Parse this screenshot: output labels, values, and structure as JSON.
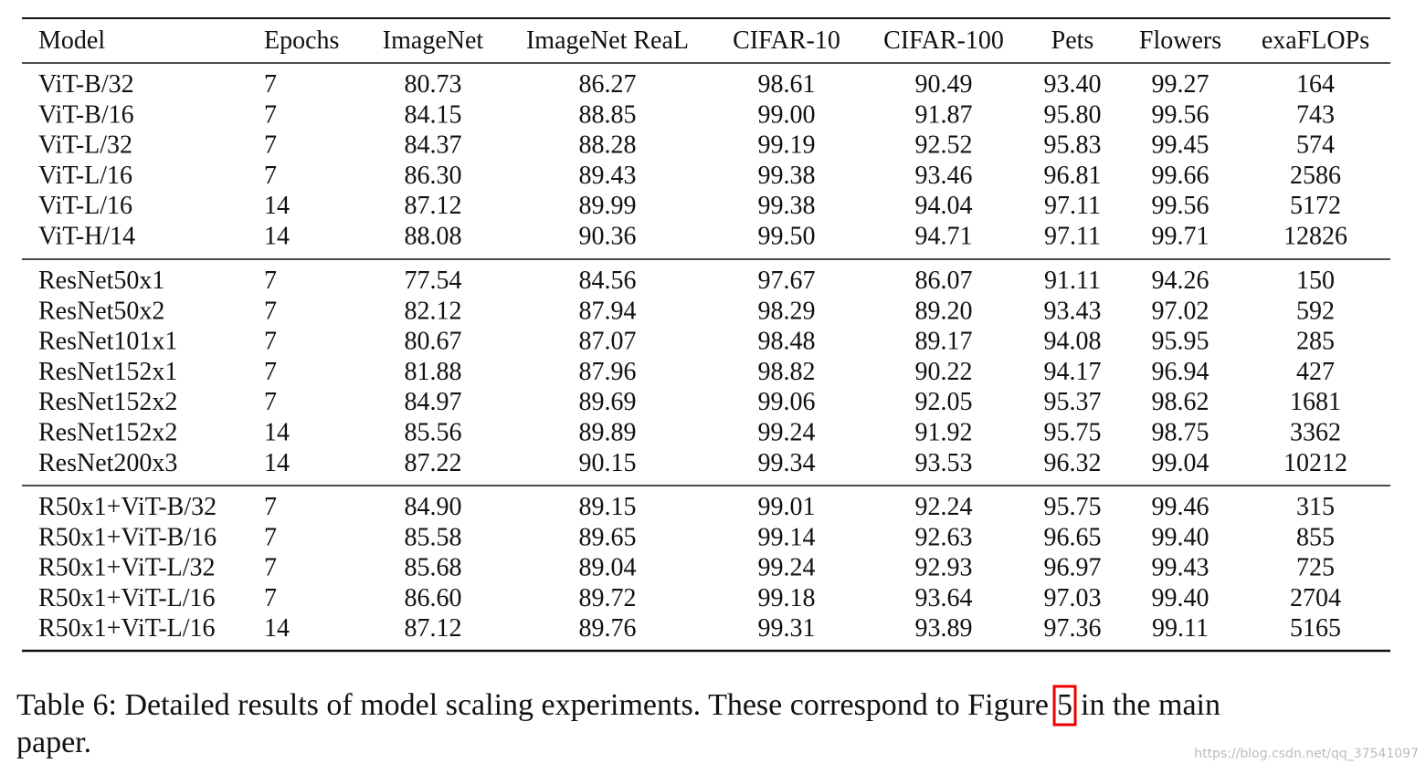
{
  "table": {
    "columns": [
      "Model",
      "Epochs",
      "ImageNet",
      "ImageNet ReaL",
      "CIFAR-10",
      "CIFAR-100",
      "Pets",
      "Flowers",
      "exaFLOPs"
    ],
    "groups": [
      {
        "rows": [
          [
            "ViT-B/32",
            "7",
            "80.73",
            "86.27",
            "98.61",
            "90.49",
            "93.40",
            "99.27",
            "164"
          ],
          [
            "ViT-B/16",
            "7",
            "84.15",
            "88.85",
            "99.00",
            "91.87",
            "95.80",
            "99.56",
            "743"
          ],
          [
            "ViT-L/32",
            "7",
            "84.37",
            "88.28",
            "99.19",
            "92.52",
            "95.83",
            "99.45",
            "574"
          ],
          [
            "ViT-L/16",
            "7",
            "86.30",
            "89.43",
            "99.38",
            "93.46",
            "96.81",
            "99.66",
            "2586"
          ],
          [
            "ViT-L/16",
            "14",
            "87.12",
            "89.99",
            "99.38",
            "94.04",
            "97.11",
            "99.56",
            "5172"
          ],
          [
            "ViT-H/14",
            "14",
            "88.08",
            "90.36",
            "99.50",
            "94.71",
            "97.11",
            "99.71",
            "12826"
          ]
        ]
      },
      {
        "rows": [
          [
            "ResNet50x1",
            "7",
            "77.54",
            "84.56",
            "97.67",
            "86.07",
            "91.11",
            "94.26",
            "150"
          ],
          [
            "ResNet50x2",
            "7",
            "82.12",
            "87.94",
            "98.29",
            "89.20",
            "93.43",
            "97.02",
            "592"
          ],
          [
            "ResNet101x1",
            "7",
            "80.67",
            "87.07",
            "98.48",
            "89.17",
            "94.08",
            "95.95",
            "285"
          ],
          [
            "ResNet152x1",
            "7",
            "81.88",
            "87.96",
            "98.82",
            "90.22",
            "94.17",
            "96.94",
            "427"
          ],
          [
            "ResNet152x2",
            "7",
            "84.97",
            "89.69",
            "99.06",
            "92.05",
            "95.37",
            "98.62",
            "1681"
          ],
          [
            "ResNet152x2",
            "14",
            "85.56",
            "89.89",
            "99.24",
            "91.92",
            "95.75",
            "98.75",
            "3362"
          ],
          [
            "ResNet200x3",
            "14",
            "87.22",
            "90.15",
            "99.34",
            "93.53",
            "96.32",
            "99.04",
            "10212"
          ]
        ]
      },
      {
        "rows": [
          [
            "R50x1+ViT-B/32",
            "7",
            "84.90",
            "89.15",
            "99.01",
            "92.24",
            "95.75",
            "99.46",
            "315"
          ],
          [
            "R50x1+ViT-B/16",
            "7",
            "85.58",
            "89.65",
            "99.14",
            "92.63",
            "96.65",
            "99.40",
            "855"
          ],
          [
            "R50x1+ViT-L/32",
            "7",
            "85.68",
            "89.04",
            "99.24",
            "92.93",
            "96.97",
            "99.43",
            "725"
          ],
          [
            "R50x1+ViT-L/16",
            "7",
            "86.60",
            "89.72",
            "99.18",
            "93.64",
            "97.03",
            "99.40",
            "2704"
          ],
          [
            "R50x1+ViT-L/16",
            "14",
            "87.12",
            "89.76",
            "99.31",
            "93.89",
            "97.36",
            "99.11",
            "5165"
          ]
        ]
      }
    ]
  },
  "caption": [
    "Table 6: Detailed results of model scaling experiments. These correspond to Figure",
    "5",
    "in the main",
    "paper."
  ],
  "watermark": "https://blog.csdn.net/qq_37541097"
}
